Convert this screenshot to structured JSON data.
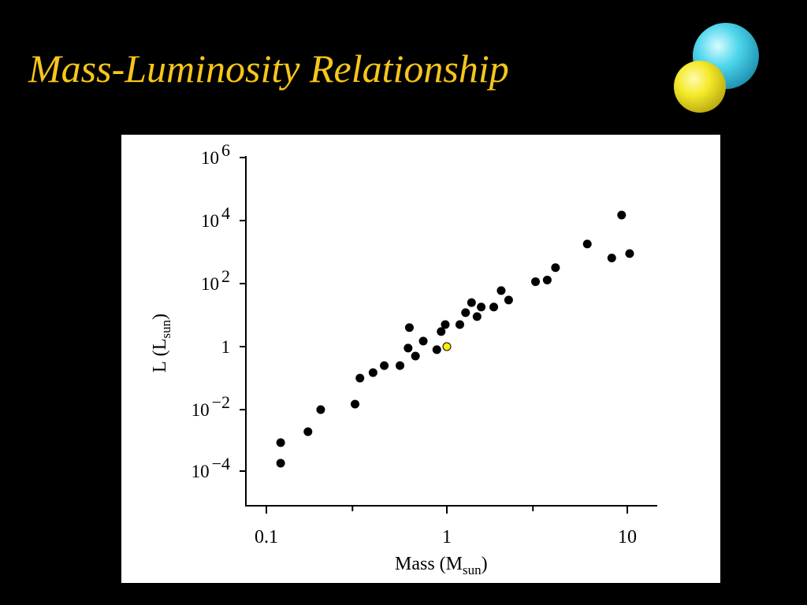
{
  "slide": {
    "title": "Mass-Luminosity Relationship",
    "title_color": "#f6c61a",
    "background": "#000000",
    "logo_icon": "two-stars-icon"
  },
  "chart_data": {
    "type": "scatter",
    "xlabel": "Mass",
    "xlabel_unit_symbol": "M",
    "xlabel_unit_sub": "sun",
    "ylabel": "L",
    "ylabel_unit_symbol": "L",
    "ylabel_unit_sub": "sun",
    "xscale": "log",
    "yscale": "log",
    "xlim": [
      0.08,
      12
    ],
    "ylim": [
      1e-06,
      1000000
    ],
    "x_ticks": [
      {
        "value": 0.1,
        "label": "0.1"
      },
      {
        "value": 1,
        "label": "1"
      },
      {
        "value": 10,
        "label": "10"
      }
    ],
    "x_minor_ticks": [
      0.3,
      3
    ],
    "y_ticks": [
      {
        "value": 1000000,
        "base": "10",
        "exp": "6"
      },
      {
        "value": 10000,
        "base": "10",
        "exp": "4"
      },
      {
        "value": 100,
        "base": "10",
        "exp": "2"
      },
      {
        "value": 1,
        "base": "1",
        "exp": ""
      },
      {
        "value": 0.01,
        "base": "10",
        "exp": "−2"
      },
      {
        "value": 0.0001,
        "base": "10",
        "exp": "−4"
      }
    ],
    "grid": false,
    "highlight_color": "#ffee00",
    "point_color": "#000000",
    "series": [
      {
        "points": [
          [
            0.12,
            0.0009
          ],
          [
            0.12,
            0.0002
          ],
          [
            0.17,
            0.002
          ],
          [
            0.2,
            0.01
          ],
          [
            0.31,
            0.015
          ],
          [
            0.33,
            0.1
          ],
          [
            0.39,
            0.15
          ],
          [
            0.45,
            0.25
          ],
          [
            0.55,
            0.25
          ],
          [
            0.61,
            0.9
          ],
          [
            0.62,
            4
          ],
          [
            0.67,
            0.5
          ],
          [
            0.74,
            1.5
          ],
          [
            0.88,
            0.8
          ],
          [
            0.93,
            3
          ],
          [
            0.98,
            5
          ],
          [
            1.18,
            5
          ],
          [
            1.27,
            12
          ],
          [
            1.37,
            25
          ],
          [
            1.47,
            9
          ],
          [
            1.55,
            18
          ],
          [
            1.82,
            18
          ],
          [
            2.0,
            60
          ],
          [
            2.2,
            30
          ],
          [
            3.1,
            115
          ],
          [
            3.6,
            130
          ],
          [
            4.0,
            320
          ],
          [
            6.0,
            1800
          ],
          [
            8.2,
            650
          ],
          [
            9.3,
            15000
          ],
          [
            10.3,
            900
          ]
        ]
      },
      {
        "highlight": true,
        "points": [
          [
            1.0,
            1.0
          ]
        ]
      }
    ]
  }
}
